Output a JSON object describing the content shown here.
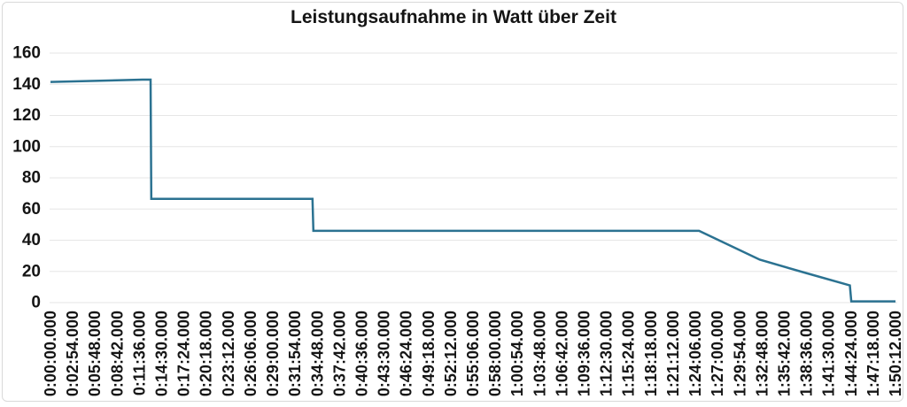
{
  "chart_data": {
    "type": "line",
    "title": "Leistungsaufnahme in Watt über Zeit",
    "xlabel": "",
    "ylabel": "",
    "ylim": [
      0,
      160
    ],
    "ytick_step": 20,
    "yticks": [
      0,
      20,
      40,
      60,
      80,
      100,
      120,
      140,
      160
    ],
    "grid": true,
    "legend_position": "none",
    "x_tick_interval_seconds": 174,
    "x_range_seconds": [
      0,
      6612
    ],
    "x_tick_labels": [
      "0:00:00.000",
      "0:02:54.000",
      "0:05:48.000",
      "0:08:42.000",
      "0:11:36.000",
      "0:14:30.000",
      "0:17:24.000",
      "0:20:18.000",
      "0:23:12.000",
      "0:26:06.000",
      "0:29:00.000",
      "0:31:54.000",
      "0:34:48.000",
      "0:37:42.000",
      "0:40:36.000",
      "0:43:30.000",
      "0:46:24.000",
      "0:49:18.000",
      "0:52:12.000",
      "0:55:06.000",
      "0:58:00.000",
      "1:00:54.000",
      "1:03:48.000",
      "1:06:42.000",
      "1:09:36.000",
      "1:12:30.000",
      "1:15:24.000",
      "1:18:18.000",
      "1:21:12.000",
      "1:24:06.000",
      "1:27:00.000",
      "1:29:54.000",
      "1:32:48.000",
      "1:35:42.000",
      "1:38:36.000",
      "1:41:30.000",
      "1:44:24.000",
      "1:47:18.000",
      "1:50:12.000"
    ],
    "series": [
      {
        "name": "Leistungsaufnahme",
        "points_t_seconds_watts": [
          [
            0,
            141.5
          ],
          [
            720,
            143
          ],
          [
            783,
            143
          ],
          [
            789,
            66.5
          ],
          [
            2050,
            66.5
          ],
          [
            2057,
            46
          ],
          [
            5075,
            46
          ],
          [
            5550,
            27.5
          ],
          [
            5910,
            19
          ],
          [
            6255,
            11
          ],
          [
            6266,
            0.8
          ],
          [
            6612,
            0.8
          ]
        ]
      }
    ]
  },
  "colors": {
    "line": "#2B7291",
    "grid": "#e6e6e6",
    "text": "#151515",
    "frame_border": "#d9d9d9",
    "background": "#ffffff"
  }
}
